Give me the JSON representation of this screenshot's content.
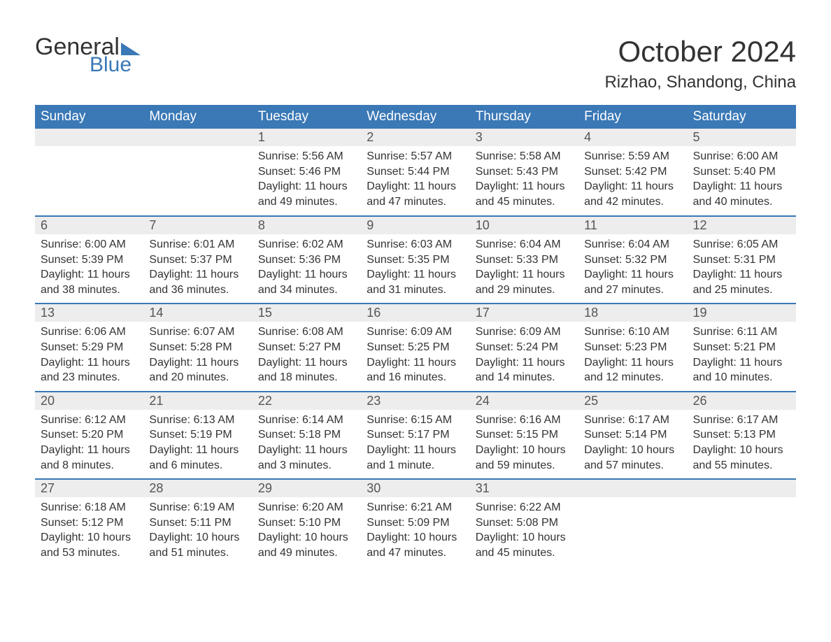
{
  "logo": {
    "text_general": "General",
    "text_blue": "Blue"
  },
  "header": {
    "month_title": "October 2024",
    "location": "Rizhao, Shandong, China"
  },
  "styling": {
    "accent_color": "#3a78b6",
    "header_row_bg": "#3a78b6",
    "header_row_text": "#ffffff",
    "daynum_bg": "#ededed",
    "body_bg": "#ffffff",
    "text_color": "#333333",
    "month_title_fontsize": 42,
    "location_fontsize": 24,
    "dayheader_fontsize": 19,
    "daynum_fontsize": 18,
    "body_fontsize": 16,
    "columns": 7,
    "rows": 5
  },
  "day_headers": [
    "Sunday",
    "Monday",
    "Tuesday",
    "Wednesday",
    "Thursday",
    "Friday",
    "Saturday"
  ],
  "weeks": [
    [
      null,
      null,
      {
        "n": "1",
        "sunrise": "Sunrise: 5:56 AM",
        "sunset": "Sunset: 5:46 PM",
        "dl1": "Daylight: 11 hours",
        "dl2": "and 49 minutes."
      },
      {
        "n": "2",
        "sunrise": "Sunrise: 5:57 AM",
        "sunset": "Sunset: 5:44 PM",
        "dl1": "Daylight: 11 hours",
        "dl2": "and 47 minutes."
      },
      {
        "n": "3",
        "sunrise": "Sunrise: 5:58 AM",
        "sunset": "Sunset: 5:43 PM",
        "dl1": "Daylight: 11 hours",
        "dl2": "and 45 minutes."
      },
      {
        "n": "4",
        "sunrise": "Sunrise: 5:59 AM",
        "sunset": "Sunset: 5:42 PM",
        "dl1": "Daylight: 11 hours",
        "dl2": "and 42 minutes."
      },
      {
        "n": "5",
        "sunrise": "Sunrise: 6:00 AM",
        "sunset": "Sunset: 5:40 PM",
        "dl1": "Daylight: 11 hours",
        "dl2": "and 40 minutes."
      }
    ],
    [
      {
        "n": "6",
        "sunrise": "Sunrise: 6:00 AM",
        "sunset": "Sunset: 5:39 PM",
        "dl1": "Daylight: 11 hours",
        "dl2": "and 38 minutes."
      },
      {
        "n": "7",
        "sunrise": "Sunrise: 6:01 AM",
        "sunset": "Sunset: 5:37 PM",
        "dl1": "Daylight: 11 hours",
        "dl2": "and 36 minutes."
      },
      {
        "n": "8",
        "sunrise": "Sunrise: 6:02 AM",
        "sunset": "Sunset: 5:36 PM",
        "dl1": "Daylight: 11 hours",
        "dl2": "and 34 minutes."
      },
      {
        "n": "9",
        "sunrise": "Sunrise: 6:03 AM",
        "sunset": "Sunset: 5:35 PM",
        "dl1": "Daylight: 11 hours",
        "dl2": "and 31 minutes."
      },
      {
        "n": "10",
        "sunrise": "Sunrise: 6:04 AM",
        "sunset": "Sunset: 5:33 PM",
        "dl1": "Daylight: 11 hours",
        "dl2": "and 29 minutes."
      },
      {
        "n": "11",
        "sunrise": "Sunrise: 6:04 AM",
        "sunset": "Sunset: 5:32 PM",
        "dl1": "Daylight: 11 hours",
        "dl2": "and 27 minutes."
      },
      {
        "n": "12",
        "sunrise": "Sunrise: 6:05 AM",
        "sunset": "Sunset: 5:31 PM",
        "dl1": "Daylight: 11 hours",
        "dl2": "and 25 minutes."
      }
    ],
    [
      {
        "n": "13",
        "sunrise": "Sunrise: 6:06 AM",
        "sunset": "Sunset: 5:29 PM",
        "dl1": "Daylight: 11 hours",
        "dl2": "and 23 minutes."
      },
      {
        "n": "14",
        "sunrise": "Sunrise: 6:07 AM",
        "sunset": "Sunset: 5:28 PM",
        "dl1": "Daylight: 11 hours",
        "dl2": "and 20 minutes."
      },
      {
        "n": "15",
        "sunrise": "Sunrise: 6:08 AM",
        "sunset": "Sunset: 5:27 PM",
        "dl1": "Daylight: 11 hours",
        "dl2": "and 18 minutes."
      },
      {
        "n": "16",
        "sunrise": "Sunrise: 6:09 AM",
        "sunset": "Sunset: 5:25 PM",
        "dl1": "Daylight: 11 hours",
        "dl2": "and 16 minutes."
      },
      {
        "n": "17",
        "sunrise": "Sunrise: 6:09 AM",
        "sunset": "Sunset: 5:24 PM",
        "dl1": "Daylight: 11 hours",
        "dl2": "and 14 minutes."
      },
      {
        "n": "18",
        "sunrise": "Sunrise: 6:10 AM",
        "sunset": "Sunset: 5:23 PM",
        "dl1": "Daylight: 11 hours",
        "dl2": "and 12 minutes."
      },
      {
        "n": "19",
        "sunrise": "Sunrise: 6:11 AM",
        "sunset": "Sunset: 5:21 PM",
        "dl1": "Daylight: 11 hours",
        "dl2": "and 10 minutes."
      }
    ],
    [
      {
        "n": "20",
        "sunrise": "Sunrise: 6:12 AM",
        "sunset": "Sunset: 5:20 PM",
        "dl1": "Daylight: 11 hours",
        "dl2": "and 8 minutes."
      },
      {
        "n": "21",
        "sunrise": "Sunrise: 6:13 AM",
        "sunset": "Sunset: 5:19 PM",
        "dl1": "Daylight: 11 hours",
        "dl2": "and 6 minutes."
      },
      {
        "n": "22",
        "sunrise": "Sunrise: 6:14 AM",
        "sunset": "Sunset: 5:18 PM",
        "dl1": "Daylight: 11 hours",
        "dl2": "and 3 minutes."
      },
      {
        "n": "23",
        "sunrise": "Sunrise: 6:15 AM",
        "sunset": "Sunset: 5:17 PM",
        "dl1": "Daylight: 11 hours",
        "dl2": "and 1 minute."
      },
      {
        "n": "24",
        "sunrise": "Sunrise: 6:16 AM",
        "sunset": "Sunset: 5:15 PM",
        "dl1": "Daylight: 10 hours",
        "dl2": "and 59 minutes."
      },
      {
        "n": "25",
        "sunrise": "Sunrise: 6:17 AM",
        "sunset": "Sunset: 5:14 PM",
        "dl1": "Daylight: 10 hours",
        "dl2": "and 57 minutes."
      },
      {
        "n": "26",
        "sunrise": "Sunrise: 6:17 AM",
        "sunset": "Sunset: 5:13 PM",
        "dl1": "Daylight: 10 hours",
        "dl2": "and 55 minutes."
      }
    ],
    [
      {
        "n": "27",
        "sunrise": "Sunrise: 6:18 AM",
        "sunset": "Sunset: 5:12 PM",
        "dl1": "Daylight: 10 hours",
        "dl2": "and 53 minutes."
      },
      {
        "n": "28",
        "sunrise": "Sunrise: 6:19 AM",
        "sunset": "Sunset: 5:11 PM",
        "dl1": "Daylight: 10 hours",
        "dl2": "and 51 minutes."
      },
      {
        "n": "29",
        "sunrise": "Sunrise: 6:20 AM",
        "sunset": "Sunset: 5:10 PM",
        "dl1": "Daylight: 10 hours",
        "dl2": "and 49 minutes."
      },
      {
        "n": "30",
        "sunrise": "Sunrise: 6:21 AM",
        "sunset": "Sunset: 5:09 PM",
        "dl1": "Daylight: 10 hours",
        "dl2": "and 47 minutes."
      },
      {
        "n": "31",
        "sunrise": "Sunrise: 6:22 AM",
        "sunset": "Sunset: 5:08 PM",
        "dl1": "Daylight: 10 hours",
        "dl2": "and 45 minutes."
      },
      null,
      null
    ]
  ]
}
